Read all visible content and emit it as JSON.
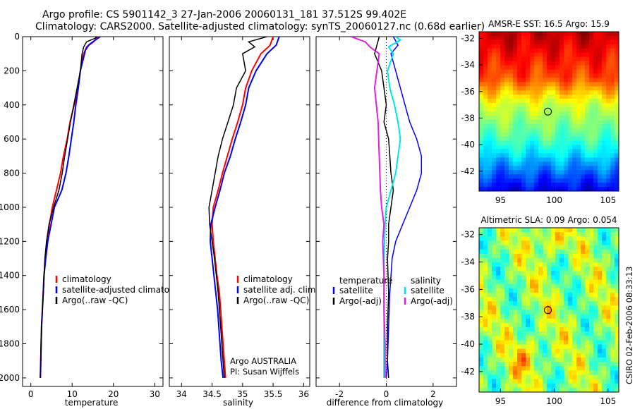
{
  "header": {
    "line1": "Argo profile: CS 5901142_3 27-Jan-2006 20060131_181 37.512S 99.402E",
    "line2": "Climatology: CARS2000. Satellite-adjusted climatology: synTS_20060127.nc (0.68d earlier)"
  },
  "credit": {
    "agency": "Argo AUSTRALIA",
    "pi": "PI: Susan Wijffels",
    "stamp": "CSIRO 02-Feb-2006 08:33:13"
  },
  "colors": {
    "climatology": "#ff0000",
    "satellite": "#0000ff",
    "argo": "#000000",
    "salinity_sat": "#00e5e5",
    "salinity_argo": "#e020e0"
  },
  "chart_data": [
    {
      "type": "line",
      "id": "temperature",
      "xlabel": "temperature",
      "ylabel": "",
      "xlim": [
        -2,
        32
      ],
      "ylim": [
        2050,
        0
      ],
      "xticks": [
        0,
        10,
        20,
        30
      ],
      "yticks": [
        0,
        200,
        400,
        600,
        800,
        1000,
        1200,
        1400,
        1600,
        1800,
        2000
      ],
      "legend": [
        "climatology",
        "satellite-adjusted climatology",
        "Argo(..raw -QC)"
      ],
      "series": [
        {
          "name": "climatology",
          "color": "#ff0000",
          "width": 2,
          "points": [
            [
              16.5,
              0
            ],
            [
              15.9,
              10
            ],
            [
              15.2,
              30
            ],
            [
              13.5,
              60
            ],
            [
              12.8,
              100
            ],
            [
              12.3,
              150
            ],
            [
              12.0,
              200
            ],
            [
              11.4,
              300
            ],
            [
              10.5,
              400
            ],
            [
              9.5,
              500
            ],
            [
              8.8,
              600
            ],
            [
              7.9,
              700
            ],
            [
              7.2,
              800
            ],
            [
              6.2,
              900
            ],
            [
              5.2,
              1000
            ],
            [
              4.5,
              1100
            ],
            [
              3.9,
              1200
            ],
            [
              3.5,
              1300
            ],
            [
              3.2,
              1400
            ],
            [
              3.0,
              1500
            ],
            [
              2.8,
              1600
            ],
            [
              2.6,
              1700
            ],
            [
              2.5,
              1800
            ],
            [
              2.4,
              1900
            ],
            [
              2.3,
              2000
            ]
          ]
        },
        {
          "name": "satellite-adjusted climatology",
          "color": "#0000ff",
          "width": 2,
          "points": [
            [
              16.8,
              0
            ],
            [
              16.2,
              10
            ],
            [
              15.0,
              30
            ],
            [
              14.0,
              50
            ],
            [
              13.2,
              80
            ],
            [
              12.5,
              150
            ],
            [
              12.0,
              200
            ],
            [
              11.5,
              300
            ],
            [
              10.9,
              400
            ],
            [
              10.4,
              500
            ],
            [
              9.8,
              600
            ],
            [
              9.2,
              700
            ],
            [
              8.5,
              800
            ],
            [
              7.5,
              900
            ],
            [
              5.7,
              1000
            ],
            [
              4.9,
              1100
            ],
            [
              4.1,
              1200
            ],
            [
              3.6,
              1300
            ],
            [
              3.2,
              1400
            ],
            [
              3.0,
              1500
            ],
            [
              2.8,
              1600
            ],
            [
              2.6,
              1700
            ],
            [
              2.5,
              1800
            ],
            [
              2.4,
              1900
            ],
            [
              2.3,
              2000
            ]
          ]
        },
        {
          "name": "Argo(..raw -QC)",
          "color": "#000000",
          "width": 1.5,
          "points": [
            [
              16.0,
              0
            ],
            [
              15.5,
              10
            ],
            [
              13.5,
              30
            ],
            [
              12.8,
              60
            ],
            [
              12.4,
              100
            ],
            [
              12.0,
              200
            ],
            [
              11.2,
              300
            ],
            [
              10.4,
              400
            ],
            [
              9.6,
              500
            ],
            [
              8.9,
              600
            ],
            [
              8.2,
              700
            ],
            [
              7.6,
              800
            ],
            [
              6.8,
              900
            ],
            [
              5.5,
              1000
            ],
            [
              4.4,
              1100
            ],
            [
              3.8,
              1200
            ],
            [
              3.4,
              1300
            ],
            [
              3.2,
              1400
            ],
            [
              3.0,
              1500
            ],
            [
              2.8,
              1600
            ],
            [
              2.6,
              1700
            ],
            [
              2.5,
              1800
            ],
            [
              2.4,
              1900
            ],
            [
              2.3,
              2000
            ]
          ]
        }
      ]
    },
    {
      "type": "line",
      "id": "salinity",
      "xlabel": "salinity",
      "xlim": [
        33.8,
        36.1
      ],
      "ylim": [
        2050,
        0
      ],
      "xticks": [
        34,
        34.5,
        35,
        35.5,
        36
      ],
      "legend": [
        "climatology",
        "satellite adj. clim.",
        "Argo(..raw -QC)"
      ],
      "series": [
        {
          "name": "climatology",
          "color": "#ff0000",
          "width": 2,
          "points": [
            [
              35.5,
              0
            ],
            [
              35.45,
              50
            ],
            [
              35.3,
              100
            ],
            [
              35.15,
              200
            ],
            [
              35.05,
              300
            ],
            [
              35.0,
              400
            ],
            [
              34.92,
              500
            ],
            [
              34.83,
              600
            ],
            [
              34.75,
              700
            ],
            [
              34.67,
              800
            ],
            [
              34.6,
              900
            ],
            [
              34.52,
              1000
            ],
            [
              34.5,
              1100
            ],
            [
              34.52,
              1200
            ],
            [
              34.55,
              1300
            ],
            [
              34.58,
              1400
            ],
            [
              34.62,
              1500
            ],
            [
              34.64,
              1600
            ],
            [
              34.66,
              1700
            ],
            [
              34.68,
              1800
            ],
            [
              34.7,
              1900
            ],
            [
              34.72,
              2000
            ]
          ]
        },
        {
          "name": "satellite adj. clim.",
          "color": "#0000ff",
          "width": 2,
          "points": [
            [
              35.6,
              0
            ],
            [
              35.55,
              50
            ],
            [
              35.4,
              100
            ],
            [
              35.22,
              200
            ],
            [
              35.1,
              300
            ],
            [
              35.05,
              400
            ],
            [
              34.97,
              500
            ],
            [
              34.88,
              600
            ],
            [
              34.8,
              700
            ],
            [
              34.7,
              800
            ],
            [
              34.63,
              900
            ],
            [
              34.55,
              1000
            ],
            [
              34.48,
              1100
            ],
            [
              34.47,
              1200
            ],
            [
              34.5,
              1300
            ],
            [
              34.53,
              1400
            ],
            [
              34.56,
              1500
            ],
            [
              34.59,
              1600
            ],
            [
              34.61,
              1700
            ],
            [
              34.63,
              1800
            ],
            [
              34.65,
              1900
            ],
            [
              34.68,
              2000
            ]
          ]
        },
        {
          "name": "Argo(..raw -QC)",
          "color": "#000000",
          "width": 1.5,
          "points": [
            [
              35.4,
              0
            ],
            [
              35.1,
              30
            ],
            [
              35.2,
              60
            ],
            [
              35.0,
              100
            ],
            [
              35.05,
              200
            ],
            [
              34.9,
              300
            ],
            [
              34.85,
              400
            ],
            [
              34.76,
              500
            ],
            [
              34.67,
              600
            ],
            [
              34.6,
              700
            ],
            [
              34.55,
              800
            ],
            [
              34.5,
              900
            ],
            [
              34.45,
              1000
            ],
            [
              34.46,
              1100
            ],
            [
              34.5,
              1200
            ],
            [
              34.54,
              1300
            ],
            [
              34.57,
              1400
            ],
            [
              34.6,
              1500
            ],
            [
              34.62,
              1600
            ],
            [
              34.64,
              1700
            ],
            [
              34.66,
              1800
            ],
            [
              34.68,
              1900
            ],
            [
              34.7,
              2000
            ]
          ]
        }
      ]
    },
    {
      "type": "line",
      "id": "difference",
      "xlabel": "difference from climatology",
      "xlim": [
        -3,
        3
      ],
      "ylim": [
        2050,
        0
      ],
      "xticks": [
        -2,
        0,
        2
      ],
      "legend": {
        "temperature_heading": "temperature",
        "salinity_heading": "salinity",
        "entries": [
          "satellite",
          "Argo(-adj)",
          "satellite",
          "Argo(-adj)"
        ]
      },
      "series": [
        {
          "name": "temperature satellite",
          "color": "#0000ff",
          "width": 1.5,
          "points": [
            [
              0.3,
              0
            ],
            [
              0.5,
              50
            ],
            [
              0.2,
              100
            ],
            [
              0.4,
              200
            ],
            [
              0.8,
              400
            ],
            [
              1.0,
              500
            ],
            [
              1.3,
              600
            ],
            [
              1.5,
              700
            ],
            [
              1.5,
              800
            ],
            [
              1.3,
              900
            ],
            [
              1.0,
              1000
            ],
            [
              0.7,
              1100
            ],
            [
              0.4,
              1200
            ],
            [
              0.25,
              1300
            ],
            [
              0.15,
              1500
            ],
            [
              0.1,
              1700
            ],
            [
              0.05,
              1900
            ],
            [
              0.0,
              2000
            ]
          ]
        },
        {
          "name": "temperature Argo(-adj)",
          "color": "#000000",
          "width": 1.5,
          "points": [
            [
              -0.3,
              0
            ],
            [
              -0.5,
              100
            ],
            [
              -0.2,
              200
            ],
            [
              -0.1,
              300
            ],
            [
              0.0,
              400
            ],
            [
              -0.1,
              500
            ],
            [
              0.1,
              600
            ],
            [
              0.15,
              700
            ],
            [
              0.2,
              800
            ],
            [
              0.3,
              900
            ],
            [
              0.2,
              1000
            ],
            [
              0.1,
              1100
            ],
            [
              0.1,
              1200
            ],
            [
              0.05,
              1300
            ],
            [
              0.1,
              1500
            ],
            [
              0.05,
              1700
            ],
            [
              0.05,
              1900
            ],
            [
              0.1,
              2000
            ]
          ]
        },
        {
          "name": "salinity satellite",
          "color": "#00e5e5",
          "width": 2,
          "points": [
            [
              0.4,
              0
            ],
            [
              0.6,
              20
            ],
            [
              0.1,
              60
            ],
            [
              0.3,
              100
            ],
            [
              0.05,
              200
            ],
            [
              0.15,
              300
            ],
            [
              0.35,
              400
            ],
            [
              0.5,
              500
            ],
            [
              0.6,
              600
            ],
            [
              0.5,
              700
            ],
            [
              0.4,
              800
            ],
            [
              0.2,
              900
            ],
            [
              0.0,
              1000
            ],
            [
              -0.05,
              1100
            ],
            [
              -0.1,
              1300
            ],
            [
              -0.1,
              1500
            ],
            [
              -0.1,
              1700
            ],
            [
              -0.1,
              1900
            ],
            [
              -0.1,
              2000
            ]
          ]
        },
        {
          "name": "salinity Argo(-adj)",
          "color": "#e020e0",
          "width": 2,
          "points": [
            [
              -1.5,
              0
            ],
            [
              -0.9,
              30
            ],
            [
              -0.7,
              60
            ],
            [
              -0.3,
              100
            ],
            [
              -0.5,
              300
            ],
            [
              -0.35,
              500
            ],
            [
              -0.3,
              700
            ],
            [
              -0.25,
              900
            ],
            [
              -0.2,
              1000
            ],
            [
              -0.1,
              1100
            ],
            [
              -0.15,
              1200
            ],
            [
              -0.1,
              1400
            ],
            [
              -0.1,
              1600
            ],
            [
              -0.05,
              1800
            ],
            [
              -0.05,
              2000
            ]
          ]
        }
      ]
    },
    {
      "type": "heatmap",
      "id": "sst",
      "title": "AMSR-E SST: 16.5 Argo: 15.9",
      "xlim": [
        93,
        106
      ],
      "ylim": [
        -43.5,
        -31.5
      ],
      "xticks": [
        95,
        100,
        105
      ],
      "yticks": [
        -32,
        -34,
        -36,
        -38,
        -40,
        -42
      ],
      "marker": [
        99.402,
        -37.512
      ]
    },
    {
      "type": "heatmap",
      "id": "sla",
      "title": "Altimetric SLA: 0.09 Argo: 0.054",
      "xlim": [
        93,
        106
      ],
      "ylim": [
        -43.5,
        -31.5
      ],
      "xticks": [
        95,
        100,
        105
      ],
      "yticks": [
        -32,
        -34,
        -36,
        -38,
        -40,
        -42
      ],
      "marker": [
        99.402,
        -37.512
      ]
    }
  ]
}
